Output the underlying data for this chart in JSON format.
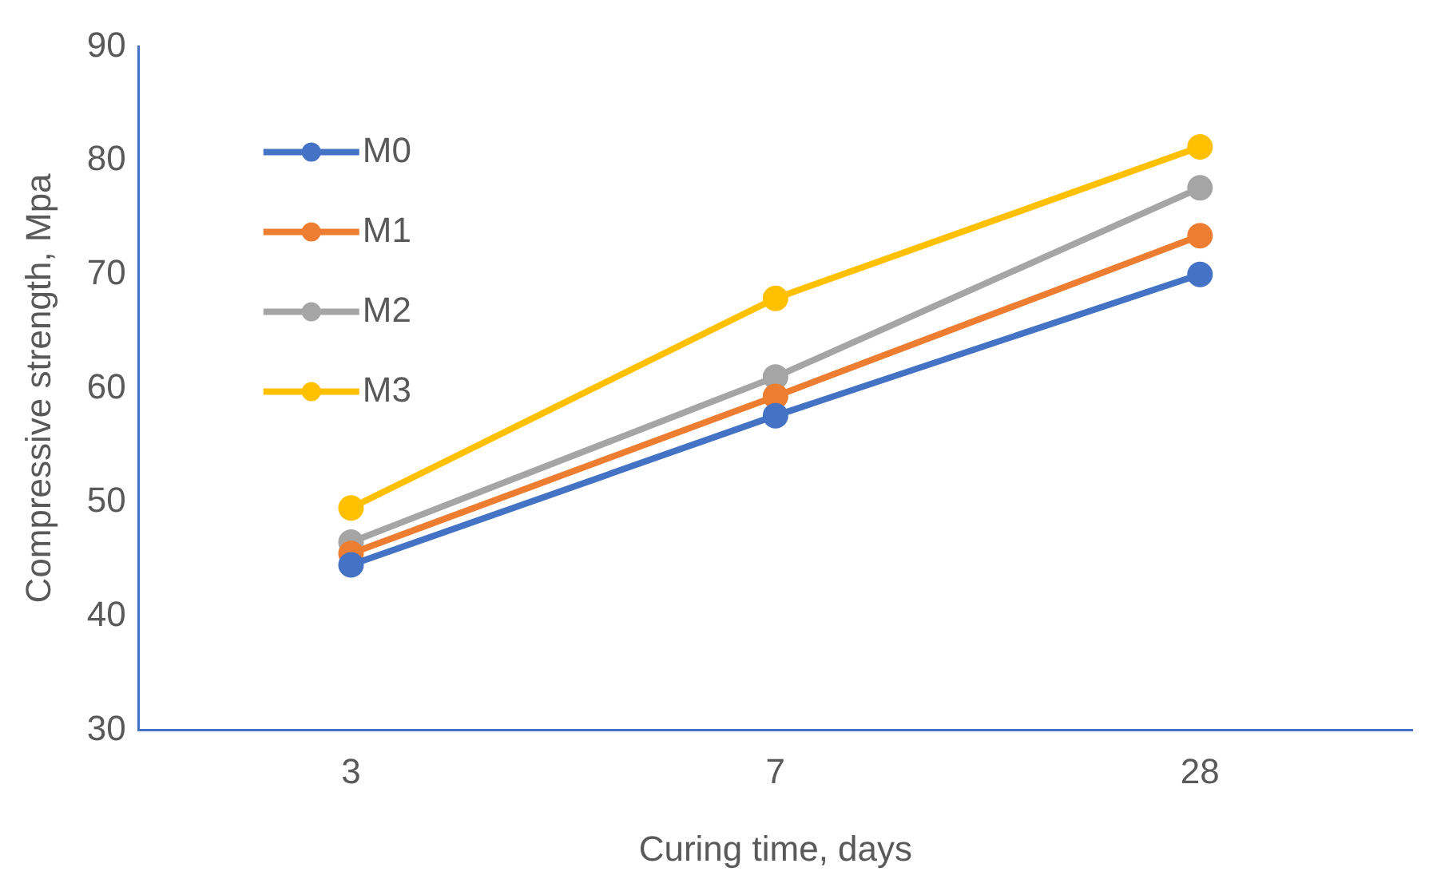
{
  "chart_data": {
    "type": "line",
    "xlabel": "Curing time, days",
    "ylabel": "Compressive strength, Mpa",
    "categories": [
      "3",
      "7",
      "28"
    ],
    "series": [
      {
        "name": "M0",
        "color": "#4472c4",
        "values": [
          44.5,
          57.6,
          70
        ]
      },
      {
        "name": "M1",
        "color": "#ed7d31",
        "values": [
          45.5,
          59.3,
          73.4
        ]
      },
      {
        "name": "M2",
        "color": "#a5a5a5",
        "values": [
          46.5,
          61,
          77.6
        ]
      },
      {
        "name": "M3",
        "color": "#ffc000",
        "values": [
          49.5,
          67.9,
          81.2
        ]
      }
    ],
    "ylim": [
      30,
      90
    ],
    "yticks": [
      30,
      40,
      50,
      60,
      70,
      80,
      90
    ],
    "grid": false,
    "legend": "top left",
    "marker": "circle",
    "line_style": "solid"
  }
}
